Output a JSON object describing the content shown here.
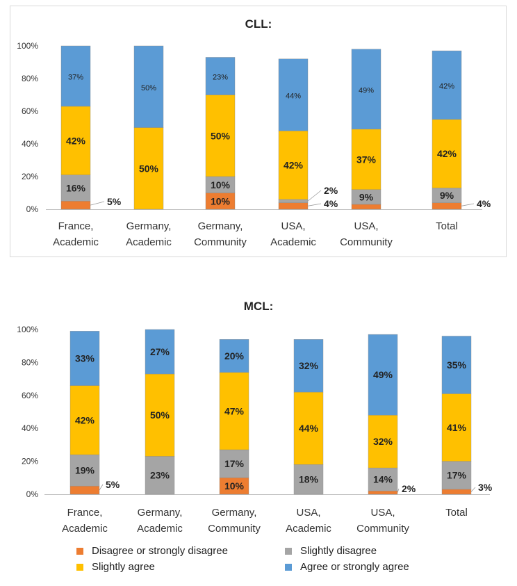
{
  "colors": {
    "disagree": "#ED7D31",
    "slightly_disagree": "#A5A5A5",
    "slightly_agree": "#FFC000",
    "agree": "#5B9BD5"
  },
  "chart_data": [
    {
      "type": "bar",
      "stacked": true,
      "title": "CLL:",
      "yticks": [
        "0%",
        "20%",
        "40%",
        "60%",
        "80%",
        "100%"
      ],
      "ylim": [
        0,
        100
      ],
      "categories": [
        [
          "France,",
          "Academic"
        ],
        [
          "Germany,",
          "Academic"
        ],
        [
          "Germany,",
          "Community"
        ],
        [
          "USA,",
          "Academic"
        ],
        [
          "USA,",
          "Community"
        ],
        [
          "Total"
        ]
      ],
      "series": [
        {
          "key": "disagree",
          "name": "Disagree or strongly disagree",
          "values": [
            5,
            0,
            10,
            4,
            3,
            4
          ],
          "labels": [
            "5%",
            "",
            "10%",
            "4%",
            "",
            "4%"
          ]
        },
        {
          "key": "slightly_disagree",
          "name": "Slightly disagree",
          "values": [
            16,
            0,
            10,
            2,
            9,
            9
          ],
          "labels": [
            "16%",
            "",
            "10%",
            "2%",
            "9%",
            "9%"
          ]
        },
        {
          "key": "slightly_agree",
          "name": "Slightly agree",
          "values": [
            42,
            50,
            50,
            42,
            37,
            42
          ],
          "labels": [
            "42%",
            "50%",
            "50%",
            "42%",
            "37%",
            "42%"
          ]
        },
        {
          "key": "agree",
          "name": "Agree or strongly agree",
          "values": [
            37,
            50,
            23,
            44,
            49,
            42
          ],
          "labels": [
            "37%",
            "50%",
            "23%",
            "44%",
            "49%",
            "42%"
          ]
        }
      ]
    },
    {
      "type": "bar",
      "stacked": true,
      "title": "MCL:",
      "yticks": [
        "0%",
        "20%",
        "40%",
        "60%",
        "80%",
        "100%"
      ],
      "ylim": [
        0,
        100
      ],
      "categories": [
        [
          "France,",
          "Academic"
        ],
        [
          "Germany,",
          "Academic"
        ],
        [
          "Germany,",
          "Community"
        ],
        [
          "USA,",
          "Academic"
        ],
        [
          "USA,",
          "Community"
        ],
        [
          "Total"
        ]
      ],
      "series": [
        {
          "key": "disagree",
          "name": "Disagree or strongly disagree",
          "values": [
            5,
            0,
            10,
            0,
            2,
            3
          ],
          "labels": [
            "5%",
            "",
            "10%",
            "",
            "2%",
            "3%"
          ]
        },
        {
          "key": "slightly_disagree",
          "name": "Slightly disagree",
          "values": [
            19,
            23,
            17,
            18,
            14,
            17
          ],
          "labels": [
            "19%",
            "23%",
            "17%",
            "18%",
            "14%",
            "17%"
          ]
        },
        {
          "key": "slightly_agree",
          "name": "Slightly agree",
          "values": [
            42,
            50,
            47,
            44,
            32,
            41
          ],
          "labels": [
            "42%",
            "50%",
            "47%",
            "44%",
            "32%",
            "41%"
          ]
        },
        {
          "key": "agree",
          "name": "Agree or strongly agree",
          "values": [
            33,
            27,
            20,
            32,
            49,
            35
          ],
          "labels": [
            "33%",
            "27%",
            "20%",
            "32%",
            "49%",
            "35%"
          ]
        }
      ]
    }
  ],
  "legend": {
    "items": [
      {
        "key": "disagree",
        "label": "Disagree or strongly disagree"
      },
      {
        "key": "slightly_disagree",
        "label": "Slightly disagree"
      },
      {
        "key": "slightly_agree",
        "label": "Slightly agree"
      },
      {
        "key": "agree",
        "label": "Agree or strongly agree"
      }
    ]
  }
}
